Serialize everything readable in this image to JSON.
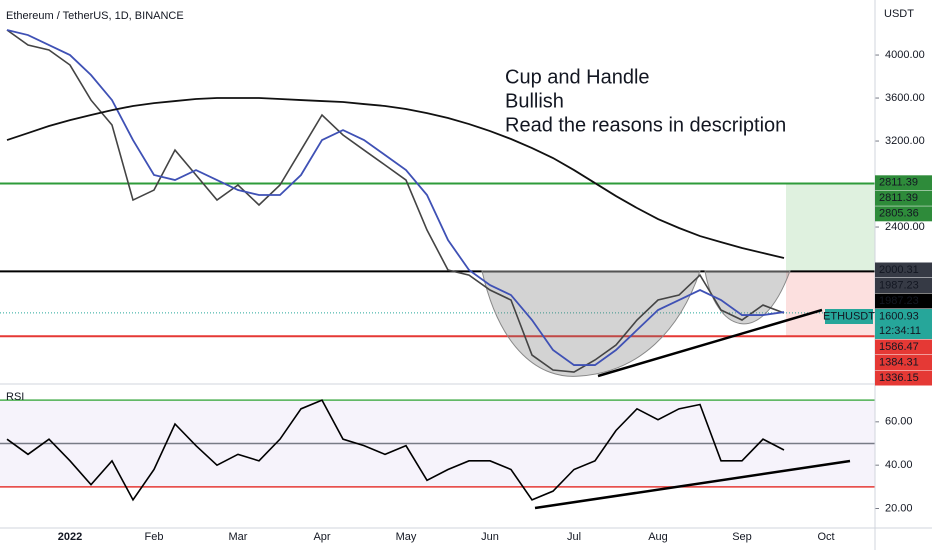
{
  "chart_data": {
    "type": "line",
    "title": "Ethereum / TetherUS, 1D, BINANCE",
    "currency": "USDT",
    "annotations": [
      "Cup and Handle",
      "Bullish",
      "Read the reasons in description"
    ],
    "annotation_color": "#1e9e4a",
    "categories": [
      null,
      null,
      null,
      "2022",
      null,
      null,
      null,
      "Feb",
      null,
      null,
      null,
      "Mar",
      null,
      null,
      null,
      "Apr",
      null,
      null,
      null,
      "May",
      null,
      null,
      null,
      "Jun",
      null,
      null,
      null,
      "Jul",
      null,
      null,
      null,
      "Aug",
      null,
      null,
      null,
      "Sep",
      null,
      null,
      null,
      "Oct"
    ],
    "series": [
      {
        "color": "#444444",
        "values": [
          4233,
          4093,
          4047,
          3907,
          3581,
          3349,
          2651,
          2744,
          3116,
          2884,
          2651,
          2791,
          2605,
          2791,
          3116,
          3442,
          3256,
          3116,
          2977,
          2837,
          2372,
          2000,
          1953,
          1814,
          1721,
          1209,
          1070,
          1051,
          1163,
          1302,
          1535,
          1721,
          1767,
          1953,
          1628,
          1535,
          1674,
          1600,
          null,
          null
        ]
      },
      {
        "color": "#3f51b5",
        "values": [
          4233,
          4186,
          4093,
          4000,
          3814,
          3581,
          3209,
          2884,
          2837,
          2930,
          2837,
          2744,
          2698,
          2698,
          2884,
          3209,
          3302,
          3209,
          3070,
          2930,
          2698,
          2279,
          2000,
          1860,
          1767,
          1535,
          1256,
          1116,
          1116,
          1256,
          1442,
          1628,
          1721,
          1814,
          1721,
          1581,
          1581,
          1609,
          null,
          null
        ]
      },
      {
        "color": "#111111",
        "values": [
          3209,
          3274,
          3340,
          3395,
          3442,
          3488,
          3526,
          3553,
          3572,
          3591,
          3600,
          3600,
          3600,
          3591,
          3581,
          3572,
          3563,
          3544,
          3526,
          3498,
          3460,
          3414,
          3358,
          3293,
          3219,
          3135,
          3042,
          2930,
          2809,
          2688,
          2577,
          2474,
          2391,
          2316,
          2260,
          2205,
          2158,
          2112,
          null,
          null
        ]
      }
    ],
    "ylim": [
      977,
      4512
    ],
    "yticks": [
      {
        "value": 4000,
        "label": "4000.00"
      },
      {
        "value": 3600,
        "label": "3600.00"
      },
      {
        "value": 3200,
        "label": "3200.00"
      },
      {
        "value": 2800,
        "label": "2800.00"
      },
      {
        "value": 2400,
        "label": "2400.00"
      }
    ],
    "levels": [
      {
        "value": 2805.36,
        "color": "#2e9b3a"
      },
      {
        "value": 1987.23,
        "color": "#000000"
      },
      {
        "value": 1384.31,
        "color": "#e53935"
      }
    ],
    "price_tags": [
      {
        "value": 2811.39,
        "color": "#2e8b3a"
      },
      {
        "value": 2811.39,
        "color": "#2e8b3a"
      },
      {
        "value": 2805.36,
        "color": "#2e8b3a"
      },
      {
        "value": 2000.31,
        "color": "#363a45"
      },
      {
        "value": 1987.23,
        "color": "#363a45"
      },
      {
        "value": 1987.23,
        "color": "#000000"
      },
      {
        "value": 1586.47,
        "color": "#e53935"
      },
      {
        "value": 1384.31,
        "color": "#e53935"
      },
      {
        "value": 1336.15,
        "color": "#e53935"
      }
    ],
    "last_price": {
      "symbol": "ETHUSDT",
      "value": 1600.93,
      "countdown": "12:34:11",
      "color": "#26a69a"
    },
    "rsi": {
      "label": "RSI",
      "color": "#000000",
      "values": [
        52,
        45,
        52,
        42,
        31,
        42,
        24,
        38,
        59,
        49,
        40,
        45,
        42,
        52,
        66,
        70,
        52,
        49,
        45,
        49,
        33,
        38,
        42,
        42,
        38,
        24,
        28,
        38,
        42,
        56,
        66,
        61,
        66,
        68,
        42,
        42,
        52,
        47,
        null,
        null
      ],
      "ylim": [
        11,
        77
      ],
      "yticks": [
        {
          "value": 60,
          "label": "60.00"
        },
        {
          "value": 40,
          "label": "40.00"
        },
        {
          "value": 20,
          "label": "20.00"
        }
      ],
      "levels": [
        {
          "value": 70,
          "color": "#4caf50"
        },
        {
          "value": 50,
          "color": "#787b86"
        },
        {
          "value": 30,
          "color": "#e53935"
        }
      ]
    }
  }
}
